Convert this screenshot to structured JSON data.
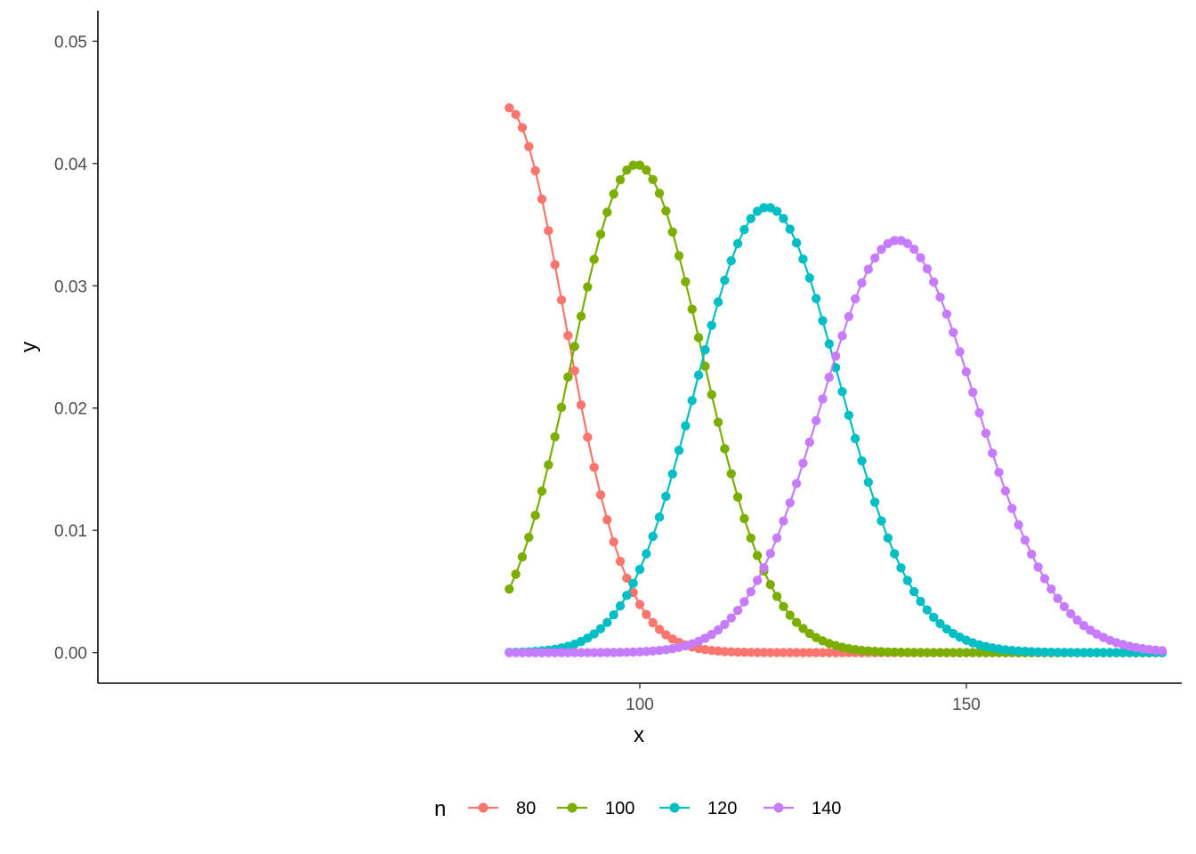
{
  "chart_data": {
    "type": "line",
    "xlabel": "x",
    "ylabel": "y",
    "xlim": [
      17,
      183
    ],
    "ylim": [
      -0.0025,
      0.0525
    ],
    "x_ticks": [
      100,
      150
    ],
    "y_ticks": [
      0.0,
      0.01,
      0.02,
      0.03,
      0.04,
      0.05
    ],
    "x_tick_labels": [
      "100",
      "150"
    ],
    "y_tick_labels": [
      "0.00",
      "0.01",
      "0.02",
      "0.03",
      "0.04",
      "0.05"
    ],
    "x_range": [
      80,
      180
    ],
    "x_step": 1,
    "markers": true,
    "grid": false,
    "legend": {
      "title": "n",
      "position": "bottom",
      "entries": [
        "80",
        "100",
        "120",
        "140"
      ]
    },
    "series": [
      {
        "name": "80",
        "distribution": "poisson",
        "lambda": 80,
        "color": "#F8766D"
      },
      {
        "name": "100",
        "distribution": "poisson",
        "lambda": 100,
        "color": "#7CAE00"
      },
      {
        "name": "120",
        "distribution": "poisson",
        "lambda": 120,
        "color": "#00BFC4"
      },
      {
        "name": "140",
        "distribution": "poisson",
        "lambda": 140,
        "color": "#C77CFF"
      }
    ]
  }
}
